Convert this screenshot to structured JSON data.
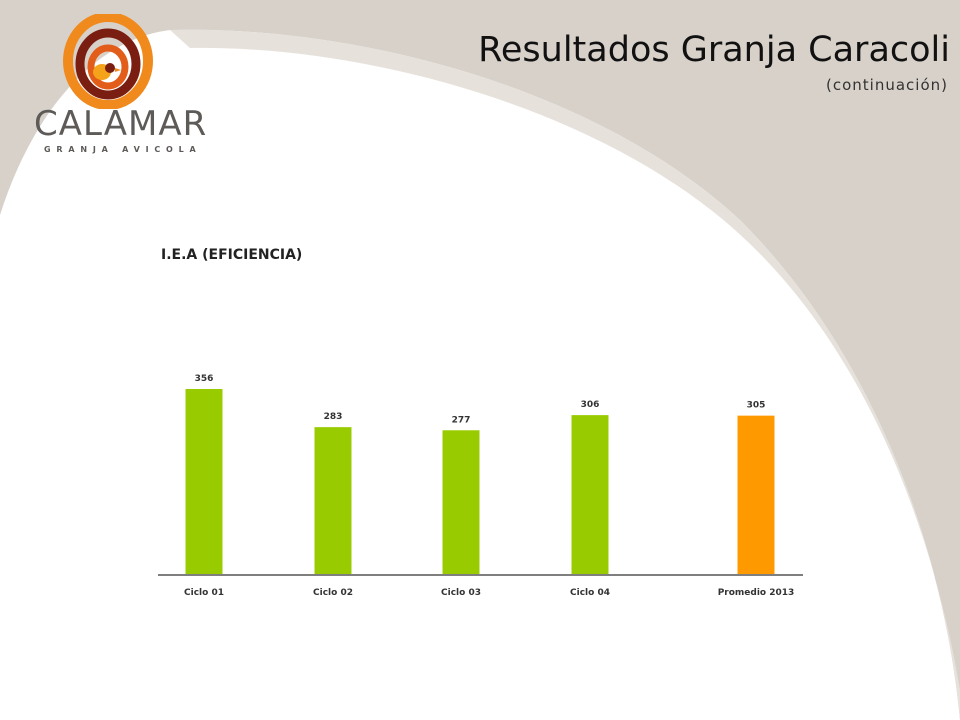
{
  "header": {
    "title": "Resultados Granja Caracoli",
    "subtitle": "(continuación)"
  },
  "logo": {
    "wordmark": "CALAMAR",
    "tagline": "GRANJA AVICOLA",
    "colors": {
      "ring_outer": "#f08a1c",
      "ring_inner": "#7a1e12",
      "text": "#5d5a57"
    }
  },
  "colors": {
    "background_shape": "#d8d1ca",
    "bar_default": "#99cc00",
    "bar_highlight": "#ff9900",
    "axis": "#7f7f7f"
  },
  "chart_data": {
    "type": "bar",
    "title": "I.E.A (EFICIENCIA)",
    "categories": [
      "Ciclo 01",
      "Ciclo 02",
      "Ciclo 03",
      "Ciclo 04",
      "Promedio 2013"
    ],
    "values": [
      356,
      283,
      277,
      306,
      305
    ],
    "data_labels": [
      "356",
      "283",
      "277",
      "306",
      "305"
    ],
    "highlight_category": "Promedio 2013",
    "xlabel": "",
    "ylabel": "",
    "ylim": [
      0,
      356
    ],
    "grid": false,
    "legend": "none"
  }
}
